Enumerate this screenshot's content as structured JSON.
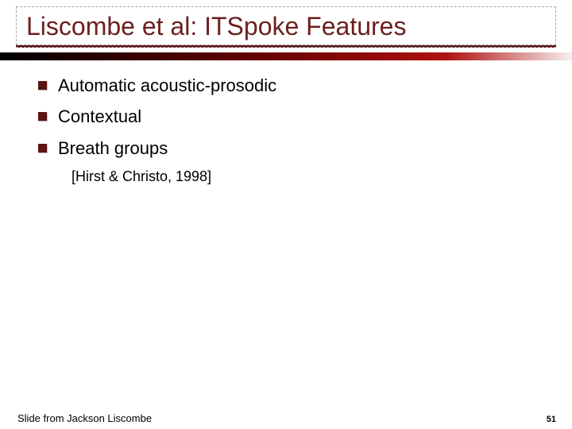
{
  "colors": {
    "title_color": "#6b1f1f",
    "bullet_color": "#5c1414",
    "text_color": "#000000",
    "background": "#ffffff",
    "title_border": "#a0a0a0",
    "hr_gradient": [
      "#000000",
      "#3a0000",
      "#7b0404",
      "#b01010",
      "#f7f0f0"
    ]
  },
  "typography": {
    "title_fontsize": 32,
    "bullet_fontsize": 22,
    "sub_fontsize": 18,
    "footer_credit_fontsize": 13,
    "footer_page_fontsize": 11,
    "font_family": "Verdana"
  },
  "title": "Liscombe et al: ITSpoke Features",
  "bullets": [
    {
      "text": "Automatic acoustic-prosodic"
    },
    {
      "text": "Contextual"
    },
    {
      "text": "Breath groups"
    }
  ],
  "sub_citation": "[Hirst & Christo, 1998]",
  "footer": {
    "credit": "Slide from Jackson Liscombe",
    "page": "51"
  }
}
